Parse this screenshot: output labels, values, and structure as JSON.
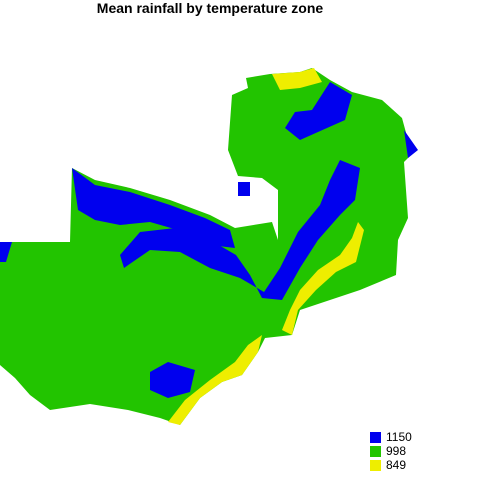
{
  "title": "Mean rainfall by temperature zone",
  "legend": [
    {
      "label": "1150",
      "color": "#0000ee"
    },
    {
      "label": "998",
      "color": "#22c400"
    },
    {
      "label": "849",
      "color": "#eeee00"
    }
  ],
  "colors": {
    "high": "#0000ee",
    "mid": "#22c400",
    "low": "#eeee00",
    "background": "#ffffff"
  }
}
